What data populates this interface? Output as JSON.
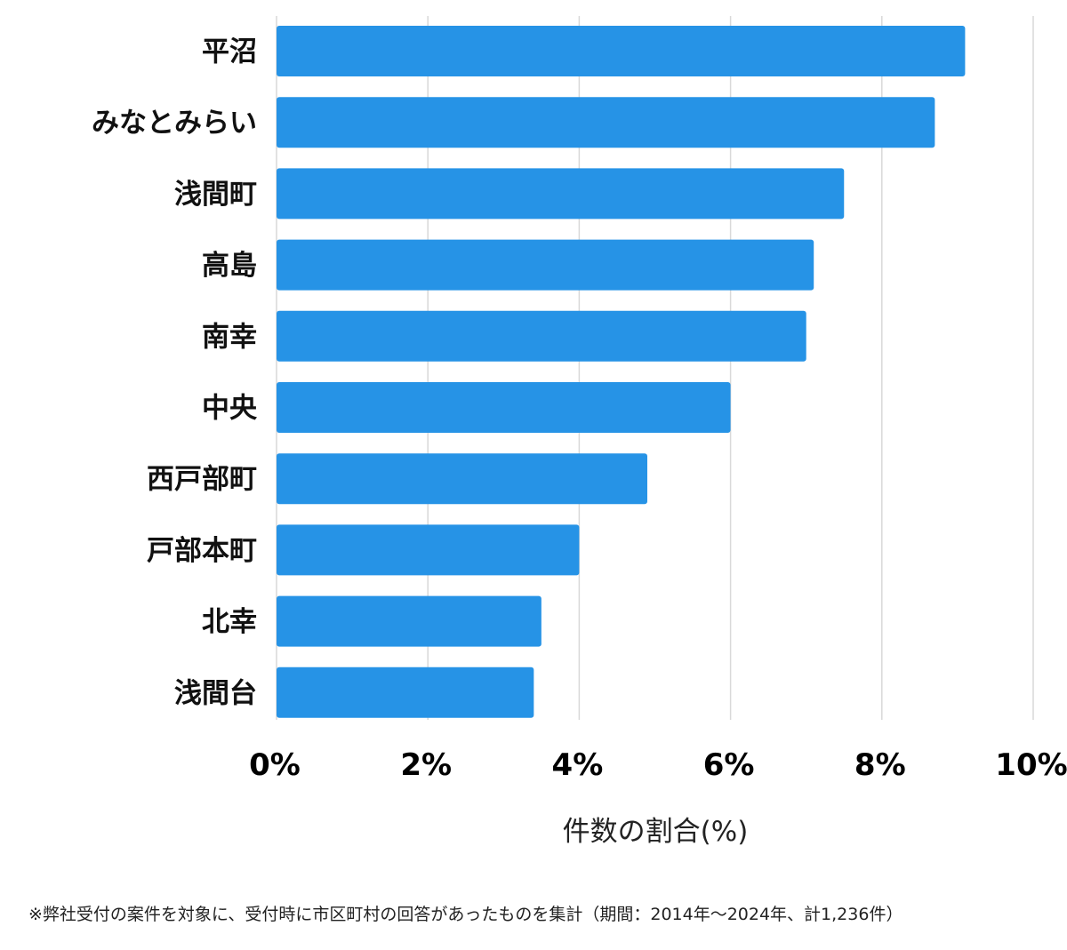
{
  "chart_data": {
    "type": "bar",
    "orientation": "horizontal",
    "categories": [
      "平沼",
      "みなとみらい",
      "浅間町",
      "高島",
      "南幸",
      "中央",
      "西戸部町",
      "戸部本町",
      "北幸",
      "浅間台"
    ],
    "values": [
      9.1,
      8.7,
      7.5,
      7.1,
      7.0,
      6.0,
      4.9,
      4.0,
      3.5,
      3.4
    ],
    "xlabel": "件数の割合(%)",
    "ylabel": "",
    "title": "",
    "xlim": [
      0,
      10
    ],
    "xticks": [
      0,
      2,
      4,
      6,
      8,
      10
    ],
    "xtick_labels": [
      "0%",
      "2%",
      "4%",
      "6%",
      "8%",
      "10%"
    ],
    "grid": "vertical",
    "legend": "none",
    "bar_color": "#2693e6",
    "grid_color": "#d9d9d9"
  },
  "footnote": "※弊社受付の案件を対象に、受付時に市区町村の回答があったものを集計（期間：2014年〜2024年、計1,236件）"
}
